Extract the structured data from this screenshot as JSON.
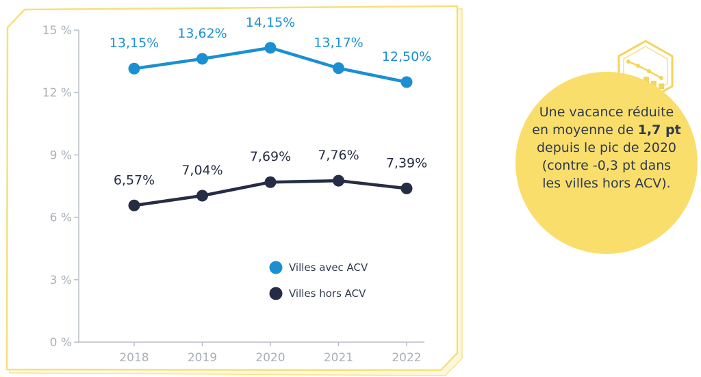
{
  "chart_data": {
    "type": "line",
    "categories": [
      "2018",
      "2019",
      "2020",
      "2021",
      "2022"
    ],
    "series": [
      {
        "name": "Villes avec ACV",
        "values": [
          13.15,
          13.62,
          14.15,
          13.17,
          12.5
        ],
        "labels": [
          "13,15%",
          "13,62%",
          "14,15%",
          "13,17%",
          "12,50%"
        ],
        "color": "#1b8fd2"
      },
      {
        "name": "Villes hors ACV",
        "values": [
          6.57,
          7.04,
          7.69,
          7.76,
          7.39
        ],
        "labels": [
          "6,57%",
          "7,04%",
          "7,69%",
          "7,76%",
          "7,39%"
        ],
        "color": "#252d45"
      }
    ],
    "yticks": [
      0,
      3,
      6,
      9,
      12,
      15
    ],
    "ytick_labels": [
      "0 %",
      "3 %",
      "6 %",
      "9 %",
      "12 %",
      "15 %"
    ],
    "ylim": [
      0,
      15
    ],
    "legend_position": "bottom-right",
    "grid": false
  },
  "callout": {
    "text_before": "Une vacance réduite en moyenne de ",
    "text_bold": "1,7 pt",
    "text_after": " depuis le pic de 2020 (contre -0,3 pt dans les villes hors ACV)."
  },
  "colors": {
    "frame": "#f7e07c",
    "callout": "#f9de6c",
    "axis": "#b8bec6",
    "text": "#2f3a4c"
  },
  "icons": {
    "callout_icon": "chart-hexagon-icon"
  }
}
